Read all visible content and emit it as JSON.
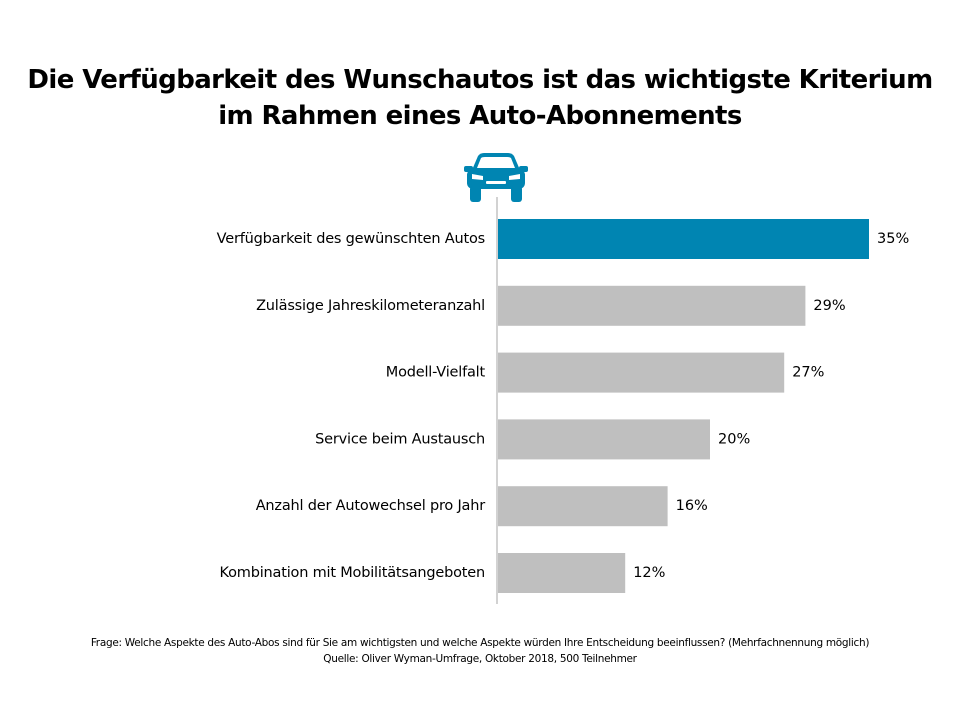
{
  "title_line1": "Die Verfügbarkeit des Wunschautos ist das wichtigste Kriterium",
  "title_line2": "im Rahmen eines Auto-Abonnements",
  "icon": "car-icon",
  "colors": {
    "highlight": "#0085b2",
    "default": "#bfbfbf",
    "axis": "#a6a6a6"
  },
  "chart_data": {
    "type": "bar",
    "orientation": "horizontal",
    "categories": [
      "Verfügbarkeit des gewünschten Autos",
      "Zulässige Jahreskilometeranzahl",
      "Modell-Vielfalt",
      "Service beim Austausch",
      "Anzahl der Autowechsel pro Jahr",
      "Kombination mit Mobilitätsangeboten"
    ],
    "values": [
      35,
      29,
      27,
      20,
      16,
      12
    ],
    "value_labels": [
      "35%",
      "29%",
      "27%",
      "20%",
      "16%",
      "12%"
    ],
    "highlight_index": 0,
    "unit": "%",
    "grid": false,
    "legend": "none"
  },
  "footnote_question": "Frage: Welche Aspekte des Auto-Abos sind für Sie am wichtigsten und welche Aspekte würden Ihre Entscheidung beeinflussen? (Mehrfachnennung möglich)",
  "footnote_source": "Quelle: Oliver Wyman-Umfrage, Oktober 2018, 500 Teilnehmer"
}
